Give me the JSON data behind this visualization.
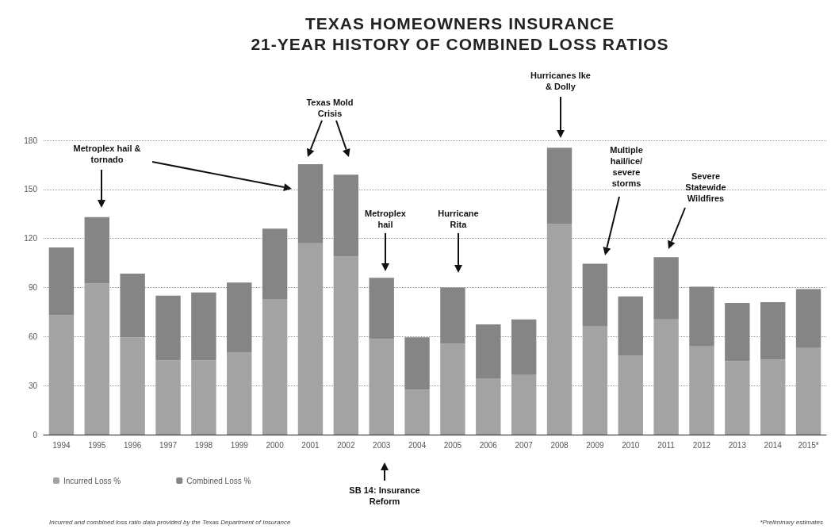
{
  "chart_data": {
    "type": "bar",
    "title": "TEXAS HOMEOWNERS INSURANCE",
    "subtitle": "21-YEAR HISTORY OF COMBINED LOSS RATIOS",
    "categories": [
      "1994",
      "1995",
      "1996",
      "1997",
      "1998",
      "1999",
      "2000",
      "2001",
      "2002",
      "2003",
      "2004",
      "2005",
      "2006",
      "2007",
      "2008",
      "2009",
      "2010",
      "2011",
      "2012",
      "2013",
      "2014",
      "2015*"
    ],
    "series": [
      {
        "name": "Incurred Loss %",
        "color": "#a3a3a3",
        "values": [
          73,
          92.5,
          59.5,
          45.5,
          45.5,
          50.5,
          83,
          117,
          109,
          58.5,
          27.5,
          55.5,
          34.5,
          36.5,
          129,
          66.5,
          48.5,
          70.5,
          54,
          45,
          46,
          53
        ]
      },
      {
        "name": "Combined Loss %",
        "color": "#858585",
        "values": [
          41.5,
          40.5,
          39,
          39.5,
          41.5,
          42.5,
          43,
          48.5,
          50,
          37.5,
          32,
          34.5,
          33,
          34,
          46.5,
          38,
          36,
          38,
          36.5,
          35.5,
          35,
          36
        ]
      }
    ],
    "stacked": true,
    "ylim": [
      0,
      180
    ],
    "yticks": [
      0,
      30,
      60,
      90,
      120,
      150,
      180
    ],
    "grid": "y",
    "legend": "bottom left",
    "annotations": [
      "Metroplex hail & tornado",
      "Texas Mold Crisis",
      "Metroplex hail",
      "Hurricane Rita",
      "Hurricanes Ike & Dolly",
      "Multiple hail/ice/ severe storms",
      "Severe Statewide Wildfires",
      "SB 14: Insurance Reform",
      "Incurred and combined loss ratio data provided by the Texas Department of Insurance",
      "*Preliminary estimates"
    ]
  }
}
